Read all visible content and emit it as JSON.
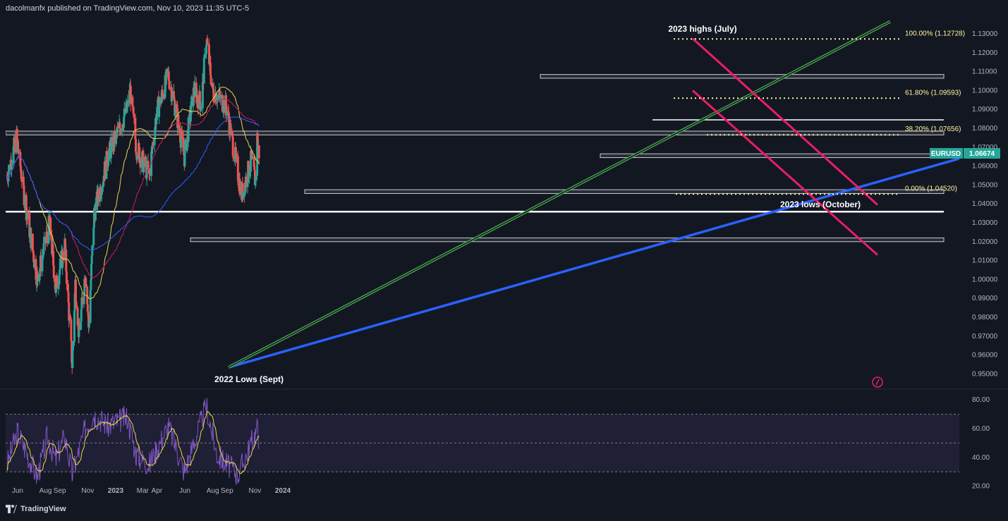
{
  "header": {
    "publisher": "dacolmanfx published on TradingView.com, Nov 10, 2023 11:35 UTC-5"
  },
  "footer": {
    "brand": "TradingView"
  },
  "colors": {
    "background": "#131722",
    "up": "#26a69a",
    "down": "#ef5350",
    "ma_yellow": "#e8d74a",
    "ma_red": "#d81b60",
    "ma_blue": "#2962ff",
    "trend_blue": "#2962ff",
    "trend_green": "#4caf50",
    "channel_pink": "#e91e63",
    "rsi_line": "#7e57c2",
    "rsi_ma": "#e8d74a",
    "fib": "#fff59d"
  },
  "chart_data": {
    "type": "candlestick",
    "symbol": "EURUSD",
    "last_price": "1.06674",
    "ylim": [
      0.945,
      1.135
    ],
    "y_ticks": [
      "1.13000",
      "1.12000",
      "1.11000",
      "1.10000",
      "1.09000",
      "1.08000",
      "1.07000",
      "1.06000",
      "1.05000",
      "1.04000",
      "1.03000",
      "1.02000",
      "1.01000",
      "1.00000",
      "0.99000",
      "0.98000",
      "0.97000",
      "0.96000",
      "0.95000"
    ],
    "x_ticks": [
      "Jun",
      "Aug",
      "Sep",
      "Nov",
      "2023",
      "Mar",
      "Apr",
      "Jun",
      "Aug",
      "Sep",
      "Nov",
      "2024"
    ],
    "price_path": [
      [
        "2022-05-09",
        1.055
      ],
      [
        "2022-05-30",
        1.075
      ],
      [
        "2022-06-15",
        1.045
      ],
      [
        "2022-07-14",
        1.0
      ],
      [
        "2022-08-10",
        1.03
      ],
      [
        "2022-08-23",
        0.995
      ],
      [
        "2022-09-12",
        1.018
      ],
      [
        "2022-09-28",
        0.955
      ],
      [
        "2022-10-05",
        0.998
      ],
      [
        "2022-10-13",
        0.97
      ],
      [
        "2022-10-27",
        1.005
      ],
      [
        "2022-11-03",
        0.975
      ],
      [
        "2022-11-15",
        1.035
      ],
      [
        "2022-12-15",
        1.065
      ],
      [
        "2023-01-26",
        1.09
      ],
      [
        "2023-02-02",
        1.1
      ],
      [
        "2023-02-15",
        1.07
      ],
      [
        "2023-03-15",
        1.055
      ],
      [
        "2023-03-31",
        1.088
      ],
      [
        "2023-04-26",
        1.108
      ],
      [
        "2023-05-12",
        1.09
      ],
      [
        "2023-05-31",
        1.065
      ],
      [
        "2023-06-21",
        1.1
      ],
      [
        "2023-07-07",
        1.093
      ],
      [
        "2023-07-18",
        1.127
      ],
      [
        "2023-08-01",
        1.1
      ],
      [
        "2023-08-30",
        1.092
      ],
      [
        "2023-09-25",
        1.056
      ],
      [
        "2023-10-03",
        1.045
      ],
      [
        "2023-10-24",
        1.063
      ],
      [
        "2023-11-02",
        1.052
      ],
      [
        "2023-11-06",
        1.075
      ],
      [
        "2023-11-10",
        1.067
      ]
    ],
    "rsi": {
      "ylim": [
        15,
        85
      ],
      "y_ticks": [
        "80.00",
        "60.00",
        "40.00",
        "20.00"
      ],
      "band": [
        30,
        70
      ],
      "path": [
        [
          "2022-05-09",
          35
        ],
        [
          "2022-06-01",
          58
        ],
        [
          "2022-07-14",
          26
        ],
        [
          "2022-08-05",
          55
        ],
        [
          "2022-08-23",
          38
        ],
        [
          "2022-09-12",
          55
        ],
        [
          "2022-09-28",
          28
        ],
        [
          "2022-10-27",
          60
        ],
        [
          "2022-11-15",
          70
        ],
        [
          "2022-12-15",
          62
        ],
        [
          "2023-01-26",
          68
        ],
        [
          "2023-02-15",
          42
        ],
        [
          "2023-03-15",
          35
        ],
        [
          "2023-04-26",
          62
        ],
        [
          "2023-05-31",
          30
        ],
        [
          "2023-07-18",
          76
        ],
        [
          "2023-08-10",
          42
        ],
        [
          "2023-09-25",
          28
        ],
        [
          "2023-11-06",
          60
        ],
        [
          "2023-11-10",
          54
        ]
      ]
    }
  },
  "annotations": {
    "highs": "2023 highs (July)",
    "lows_2023": "2023 lows (October)",
    "lows_2022": "2022 Lows (Sept)"
  },
  "fib_levels": [
    {
      "label": "100.00% (1.12728)",
      "price": 1.12728
    },
    {
      "label": "61.80% (1.09593)",
      "price": 1.09593
    },
    {
      "label": "38.20% (1.07656)",
      "price": 1.07656
    },
    {
      "label": "0.00% (1.04520)",
      "price": 1.0452
    }
  ]
}
